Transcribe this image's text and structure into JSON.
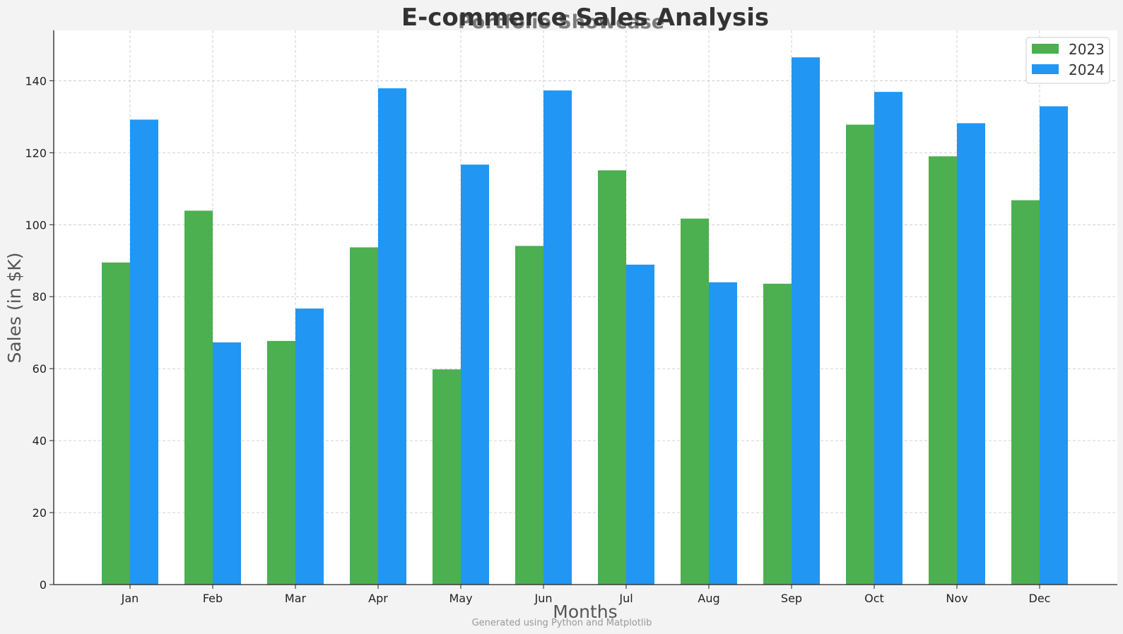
{
  "chart_data": {
    "type": "bar",
    "title": "E-commerce Sales Analysis",
    "subtitle": "Portfolio Showcase",
    "xlabel": "Months",
    "ylabel": "Sales (in $K)",
    "footer": "Generated using Python and Matplotlib",
    "categories": [
      "Jan",
      "Feb",
      "Mar",
      "Apr",
      "May",
      "Jun",
      "Jul",
      "Aug",
      "Sep",
      "Oct",
      "Nov",
      "Dec"
    ],
    "series": [
      {
        "name": "2023",
        "color": "#4caf50",
        "values": [
          89.5,
          103.9,
          67.7,
          93.7,
          59.8,
          94.1,
          115.1,
          101.7,
          83.6,
          127.8,
          119.0,
          106.8
        ]
      },
      {
        "name": "2024",
        "color": "#2196f3",
        "values": [
          129.2,
          67.3,
          76.7,
          137.9,
          116.7,
          137.3,
          88.9,
          84.0,
          146.5,
          136.9,
          128.2,
          132.9
        ]
      }
    ],
    "ylim": [
      0,
      154
    ],
    "yticks": [
      "0",
      "20",
      "40",
      "60",
      "80",
      "100",
      "120",
      "140"
    ],
    "grid": true,
    "legend_position": "top-right"
  }
}
